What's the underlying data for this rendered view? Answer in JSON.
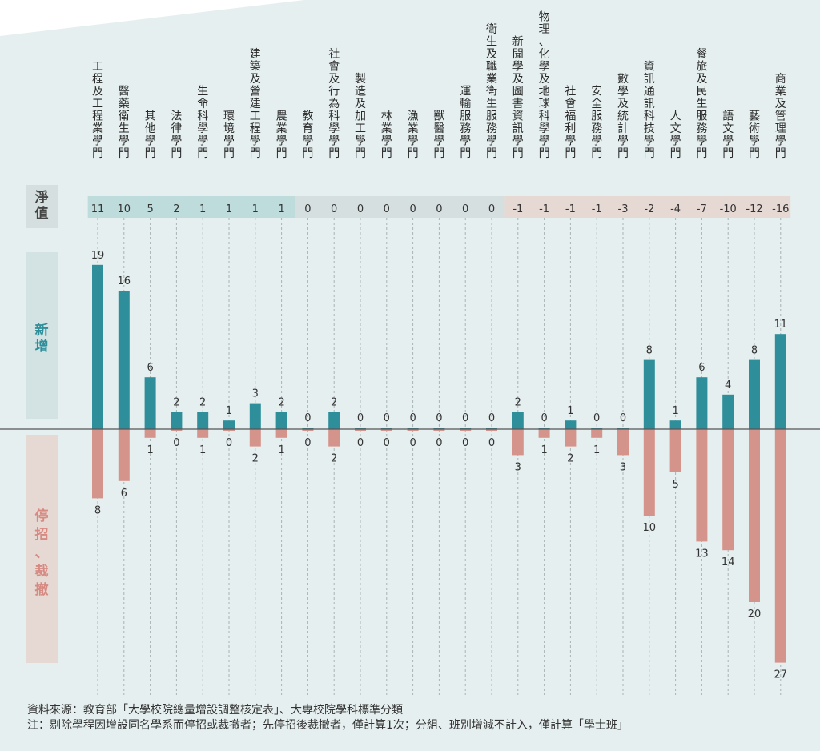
{
  "chart_data": {
    "type": "bar",
    "categories": [
      "工程及工程業學門",
      "醫藥衛生學門",
      "其他學門",
      "法律學門",
      "生命科學學門",
      "環境學門",
      "建築及營建工程學門",
      "農業學門",
      "教育學門",
      "社會及行為科學學門",
      "製造及加工學門",
      "林業學門",
      "漁業學門",
      "獸醫學門",
      "運輸服務學門",
      "衛生及職業衛生服務學門",
      "新聞學及圖書資訊學門",
      "物理、化學及地球科學學門",
      "社會福利學門",
      "安全服務學門",
      "數學及統計學門",
      "資訊通訊科技學門",
      "人文學門",
      "餐旅及民生服務學門",
      "語文學門",
      "藝術學門",
      "商業及管理學門"
    ],
    "net": [
      11,
      10,
      5,
      2,
      1,
      1,
      1,
      1,
      0,
      0,
      0,
      0,
      0,
      0,
      0,
      0,
      -1,
      -1,
      -1,
      -1,
      -3,
      -2,
      -4,
      -7,
      -10,
      -12,
      -16
    ],
    "series": [
      {
        "name": "新增",
        "color": "#2e8f9b",
        "values": [
          19,
          16,
          6,
          2,
          2,
          1,
          3,
          2,
          0,
          2,
          0,
          0,
          0,
          0,
          0,
          0,
          2,
          0,
          1,
          0,
          0,
          8,
          1,
          6,
          4,
          8,
          11
        ]
      },
      {
        "name": "停招、裁撤",
        "color": "#d4938b",
        "values": [
          8,
          6,
          1,
          0,
          1,
          0,
          2,
          1,
          0,
          2,
          0,
          0,
          0,
          0,
          0,
          0,
          3,
          1,
          2,
          1,
          3,
          10,
          5,
          13,
          14,
          20,
          27
        ]
      }
    ],
    "row_labels": {
      "net": "淨值",
      "added": "新增",
      "removed": "停招、裁撤"
    }
  },
  "colors": {
    "background": "#e6efef",
    "added": "#2e8f9b",
    "removed": "#d4938b",
    "net_positive_band": "#bfdcdc",
    "net_zero_band": "#d6dfdf",
    "net_negative_band": "#e6d8d2",
    "side_panel": "#d3e3e3"
  },
  "notes": {
    "source": "資料來源：教育部「大學校院總量增設調整核定表」、大專校院學科標準分類",
    "note": "注：剔除學程因增設同名學系而停招或裁撤者；先停招後裁撤者，僅計算1次；分組、班別增減不計入，僅計算「學士班」"
  }
}
